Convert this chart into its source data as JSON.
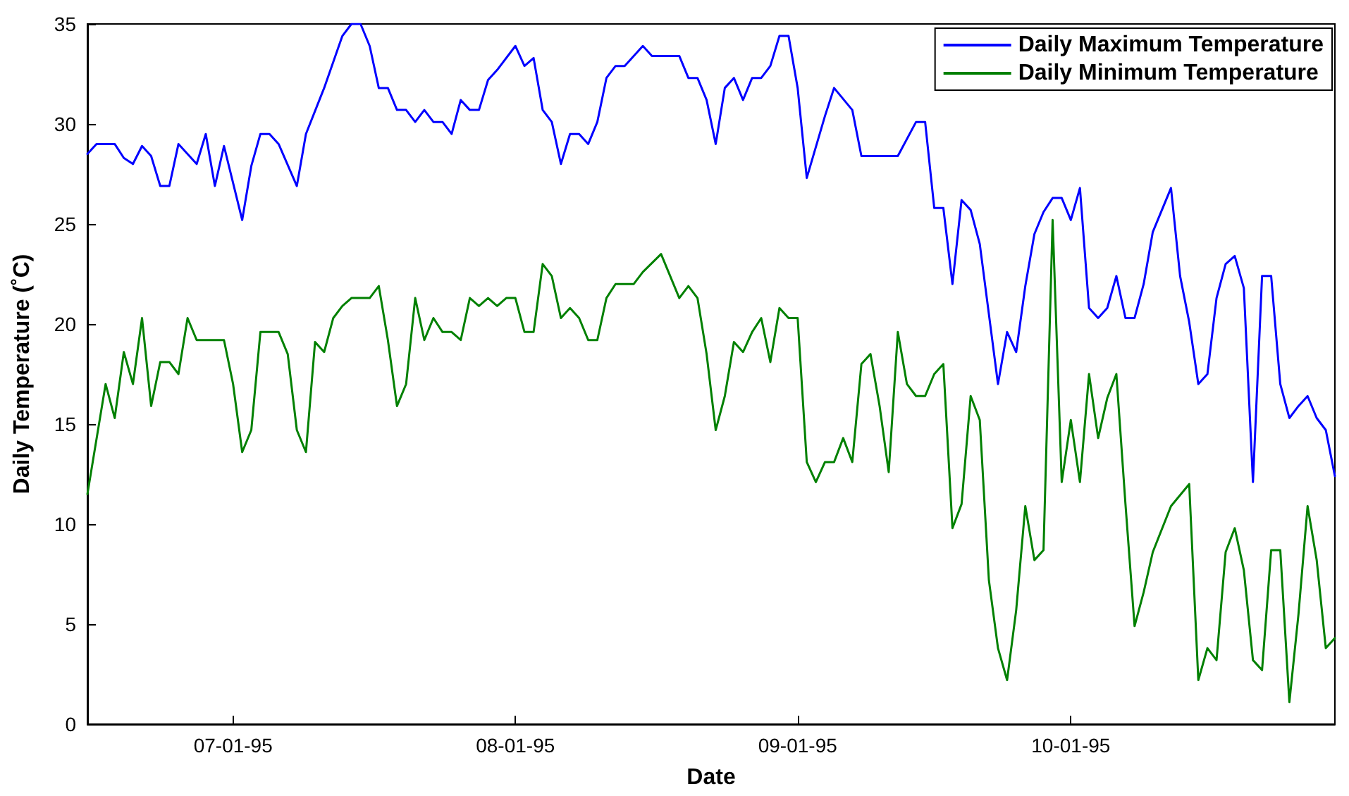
{
  "chart_data": {
    "type": "line",
    "xlabel": "Date",
    "ylabel": "Daily Temperature (˚C)",
    "xlim": [
      "1995-06-15",
      "1995-10-30"
    ],
    "xticks": [
      {
        "value": "1995-07-01",
        "label": "07-01-95"
      },
      {
        "value": "1995-08-01",
        "label": "08-01-95"
      },
      {
        "value": "1995-09-01",
        "label": "09-01-95"
      },
      {
        "value": "1995-10-01",
        "label": "10-01-95"
      }
    ],
    "ylim": [
      0,
      35
    ],
    "yticks": [
      0,
      5,
      10,
      15,
      20,
      25,
      30,
      35
    ],
    "grid": false,
    "legend": "top right",
    "marker": "none",
    "line_style": "solid",
    "series": [
      {
        "name": "Daily Maximum Temperature",
        "color": "#0000ff",
        "x": [
          "1995-06-15",
          "1995-06-16",
          "1995-06-18",
          "1995-06-19",
          "1995-06-20",
          "1995-06-21",
          "1995-06-22",
          "1995-06-23",
          "1995-06-24",
          "1995-06-25",
          "1995-06-27",
          "1995-06-28",
          "1995-06-29",
          "1995-06-30",
          "1995-07-02",
          "1995-07-03",
          "1995-07-04",
          "1995-07-05",
          "1995-07-06",
          "1995-07-08",
          "1995-07-09",
          "1995-07-11",
          "1995-07-13",
          "1995-07-14",
          "1995-07-15",
          "1995-07-16",
          "1995-07-17",
          "1995-07-18",
          "1995-07-19",
          "1995-07-20",
          "1995-07-21",
          "1995-07-22",
          "1995-07-23",
          "1995-07-24",
          "1995-07-25",
          "1995-07-26",
          "1995-07-27",
          "1995-07-28",
          "1995-07-29",
          "1995-07-30",
          "1995-08-01",
          "1995-08-02",
          "1995-08-03",
          "1995-08-04",
          "1995-08-05",
          "1995-08-06",
          "1995-08-07",
          "1995-08-08",
          "1995-08-09",
          "1995-08-10",
          "1995-08-11",
          "1995-08-12",
          "1995-08-13",
          "1995-08-15",
          "1995-08-16",
          "1995-08-19",
          "1995-08-20",
          "1995-08-21",
          "1995-08-22",
          "1995-08-23",
          "1995-08-24",
          "1995-08-25",
          "1995-08-26",
          "1995-08-27",
          "1995-08-28",
          "1995-08-29",
          "1995-08-30",
          "1995-08-31",
          "1995-09-01",
          "1995-09-02",
          "1995-09-04",
          "1995-09-05",
          "1995-09-07",
          "1995-09-08",
          "1995-09-12",
          "1995-09-14",
          "1995-09-15",
          "1995-09-16",
          "1995-09-17",
          "1995-09-18",
          "1995-09-19",
          "1995-09-20",
          "1995-09-21",
          "1995-09-23",
          "1995-09-24",
          "1995-09-25",
          "1995-09-26",
          "1995-09-27",
          "1995-09-28",
          "1995-09-29",
          "1995-09-30",
          "1995-10-01",
          "1995-10-02",
          "1995-10-03",
          "1995-10-04",
          "1995-10-05",
          "1995-10-06",
          "1995-10-07",
          "1995-10-08",
          "1995-10-09",
          "1995-10-10",
          "1995-10-12",
          "1995-10-13",
          "1995-10-14",
          "1995-10-15",
          "1995-10-16",
          "1995-10-17",
          "1995-10-18",
          "1995-10-19",
          "1995-10-20",
          "1995-10-21",
          "1995-10-22",
          "1995-10-23",
          "1995-10-24",
          "1995-10-25",
          "1995-10-26",
          "1995-10-27",
          "1995-10-28",
          "1995-10-29",
          "1995-10-30"
        ],
        "values": [
          28.5,
          29.0,
          29.0,
          28.3,
          28.0,
          28.9,
          28.4,
          26.9,
          26.9,
          29.0,
          28.0,
          29.5,
          26.9,
          28.9,
          25.2,
          27.9,
          29.5,
          29.5,
          29.0,
          26.9,
          29.5,
          31.8,
          34.4,
          35.0,
          35.0,
          33.9,
          31.8,
          31.8,
          30.7,
          30.7,
          30.1,
          30.7,
          30.1,
          30.1,
          29.5,
          31.2,
          30.7,
          30.7,
          32.2,
          32.7,
          33.9,
          32.9,
          33.3,
          30.7,
          30.1,
          28.0,
          29.5,
          29.5,
          29.0,
          30.1,
          32.3,
          32.9,
          32.9,
          33.9,
          33.4,
          33.4,
          32.3,
          32.3,
          31.2,
          29.0,
          31.8,
          32.3,
          31.2,
          32.3,
          32.3,
          32.9,
          34.4,
          34.4,
          31.8,
          27.3,
          30.4,
          31.8,
          30.7,
          28.4,
          28.4,
          30.1,
          30.1,
          25.8,
          25.8,
          22.0,
          26.2,
          25.7,
          24.0,
          17.0,
          19.6,
          18.6,
          21.9,
          24.5,
          25.6,
          26.3,
          26.3,
          25.2,
          26.8,
          20.8,
          20.3,
          20.8,
          22.4,
          20.3,
          20.3,
          22.0,
          24.6,
          26.8,
          22.4,
          20.1,
          17.0,
          17.5,
          21.3,
          23.0,
          23.4,
          21.8,
          12.1,
          22.4,
          22.4,
          17.0,
          15.3,
          15.9,
          16.4,
          15.3,
          14.7,
          12.4
        ]
      },
      {
        "name": "Daily Minimum Temperature",
        "color": "#008000",
        "x": [
          "1995-06-15",
          "1995-06-17",
          "1995-06-18",
          "1995-06-19",
          "1995-06-20",
          "1995-06-21",
          "1995-06-22",
          "1995-06-23",
          "1995-06-24",
          "1995-06-25",
          "1995-06-26",
          "1995-06-27",
          "1995-06-30",
          "1995-07-01",
          "1995-07-02",
          "1995-07-03",
          "1995-07-04",
          "1995-07-06",
          "1995-07-07",
          "1995-07-08",
          "1995-07-09",
          "1995-07-10",
          "1995-07-11",
          "1995-07-12",
          "1995-07-13",
          "1995-07-14",
          "1995-07-16",
          "1995-07-17",
          "1995-07-18",
          "1995-07-19",
          "1995-07-20",
          "1995-07-21",
          "1995-07-22",
          "1995-07-23",
          "1995-07-24",
          "1995-07-25",
          "1995-07-26",
          "1995-07-27",
          "1995-07-28",
          "1995-07-29",
          "1995-07-30",
          "1995-07-31",
          "1995-08-01",
          "1995-08-02",
          "1995-08-03",
          "1995-08-04",
          "1995-08-05",
          "1995-08-06",
          "1995-08-07",
          "1995-08-08",
          "1995-08-09",
          "1995-08-10",
          "1995-08-11",
          "1995-08-12",
          "1995-08-14",
          "1995-08-15",
          "1995-08-17",
          "1995-08-18",
          "1995-08-19",
          "1995-08-20",
          "1995-08-21",
          "1995-08-22",
          "1995-08-23",
          "1995-08-24",
          "1995-08-25",
          "1995-08-26",
          "1995-08-27",
          "1995-08-28",
          "1995-08-29",
          "1995-08-30",
          "1995-08-31",
          "1995-09-01",
          "1995-09-02",
          "1995-09-03",
          "1995-09-04",
          "1995-09-05",
          "1995-09-06",
          "1995-09-07",
          "1995-09-08",
          "1995-09-09",
          "1995-09-10",
          "1995-09-11",
          "1995-09-12",
          "1995-09-13",
          "1995-09-14",
          "1995-09-15",
          "1995-09-16",
          "1995-09-17",
          "1995-09-18",
          "1995-09-19",
          "1995-09-20",
          "1995-09-21",
          "1995-09-22",
          "1995-09-23",
          "1995-09-24",
          "1995-09-25",
          "1995-09-26",
          "1995-09-27",
          "1995-09-28",
          "1995-09-29",
          "1995-09-30",
          "1995-10-01",
          "1995-10-02",
          "1995-10-03",
          "1995-10-04",
          "1995-10-05",
          "1995-10-06",
          "1995-10-07",
          "1995-10-08",
          "1995-10-09",
          "1995-10-10",
          "1995-10-12",
          "1995-10-14",
          "1995-10-15",
          "1995-10-16",
          "1995-10-17",
          "1995-10-18",
          "1995-10-19",
          "1995-10-20",
          "1995-10-21",
          "1995-10-22",
          "1995-10-23",
          "1995-10-24",
          "1995-10-25",
          "1995-10-26",
          "1995-10-27",
          "1995-10-28",
          "1995-10-29",
          "1995-10-30"
        ],
        "values": [
          11.5,
          17.0,
          15.3,
          18.6,
          17.0,
          20.3,
          15.9,
          18.1,
          18.1,
          17.5,
          20.3,
          19.2,
          19.2,
          17.0,
          13.6,
          14.7,
          19.6,
          19.6,
          18.5,
          14.7,
          13.6,
          19.1,
          18.6,
          20.3,
          20.9,
          21.3,
          21.3,
          21.9,
          19.2,
          15.9,
          17.0,
          21.3,
          19.2,
          20.3,
          19.6,
          19.6,
          19.2,
          21.3,
          20.9,
          21.3,
          20.9,
          21.3,
          21.3,
          19.6,
          19.6,
          23.0,
          22.4,
          20.3,
          20.8,
          20.3,
          19.2,
          19.2,
          21.3,
          22.0,
          22.0,
          22.6,
          23.5,
          22.4,
          21.3,
          21.9,
          21.3,
          18.5,
          14.7,
          16.4,
          19.1,
          18.6,
          19.6,
          20.3,
          18.1,
          20.8,
          20.3,
          20.3,
          13.1,
          12.1,
          13.1,
          13.1,
          14.3,
          13.1,
          18.0,
          18.5,
          15.9,
          12.6,
          19.6,
          17.0,
          16.4,
          16.4,
          17.5,
          18.0,
          9.8,
          11.0,
          16.4,
          15.2,
          7.2,
          3.8,
          2.2,
          5.7,
          10.9,
          8.2,
          8.7,
          25.2,
          12.1,
          15.2,
          12.1,
          17.5,
          14.3,
          16.3,
          17.5,
          11.0,
          4.9,
          6.6,
          8.6,
          10.9,
          12.0,
          2.2,
          3.8,
          3.2,
          8.6,
          9.8,
          7.7,
          3.2,
          2.7,
          8.7,
          8.7,
          1.1,
          5.5,
          10.9,
          8.2,
          3.8,
          4.3
        ]
      }
    ]
  }
}
